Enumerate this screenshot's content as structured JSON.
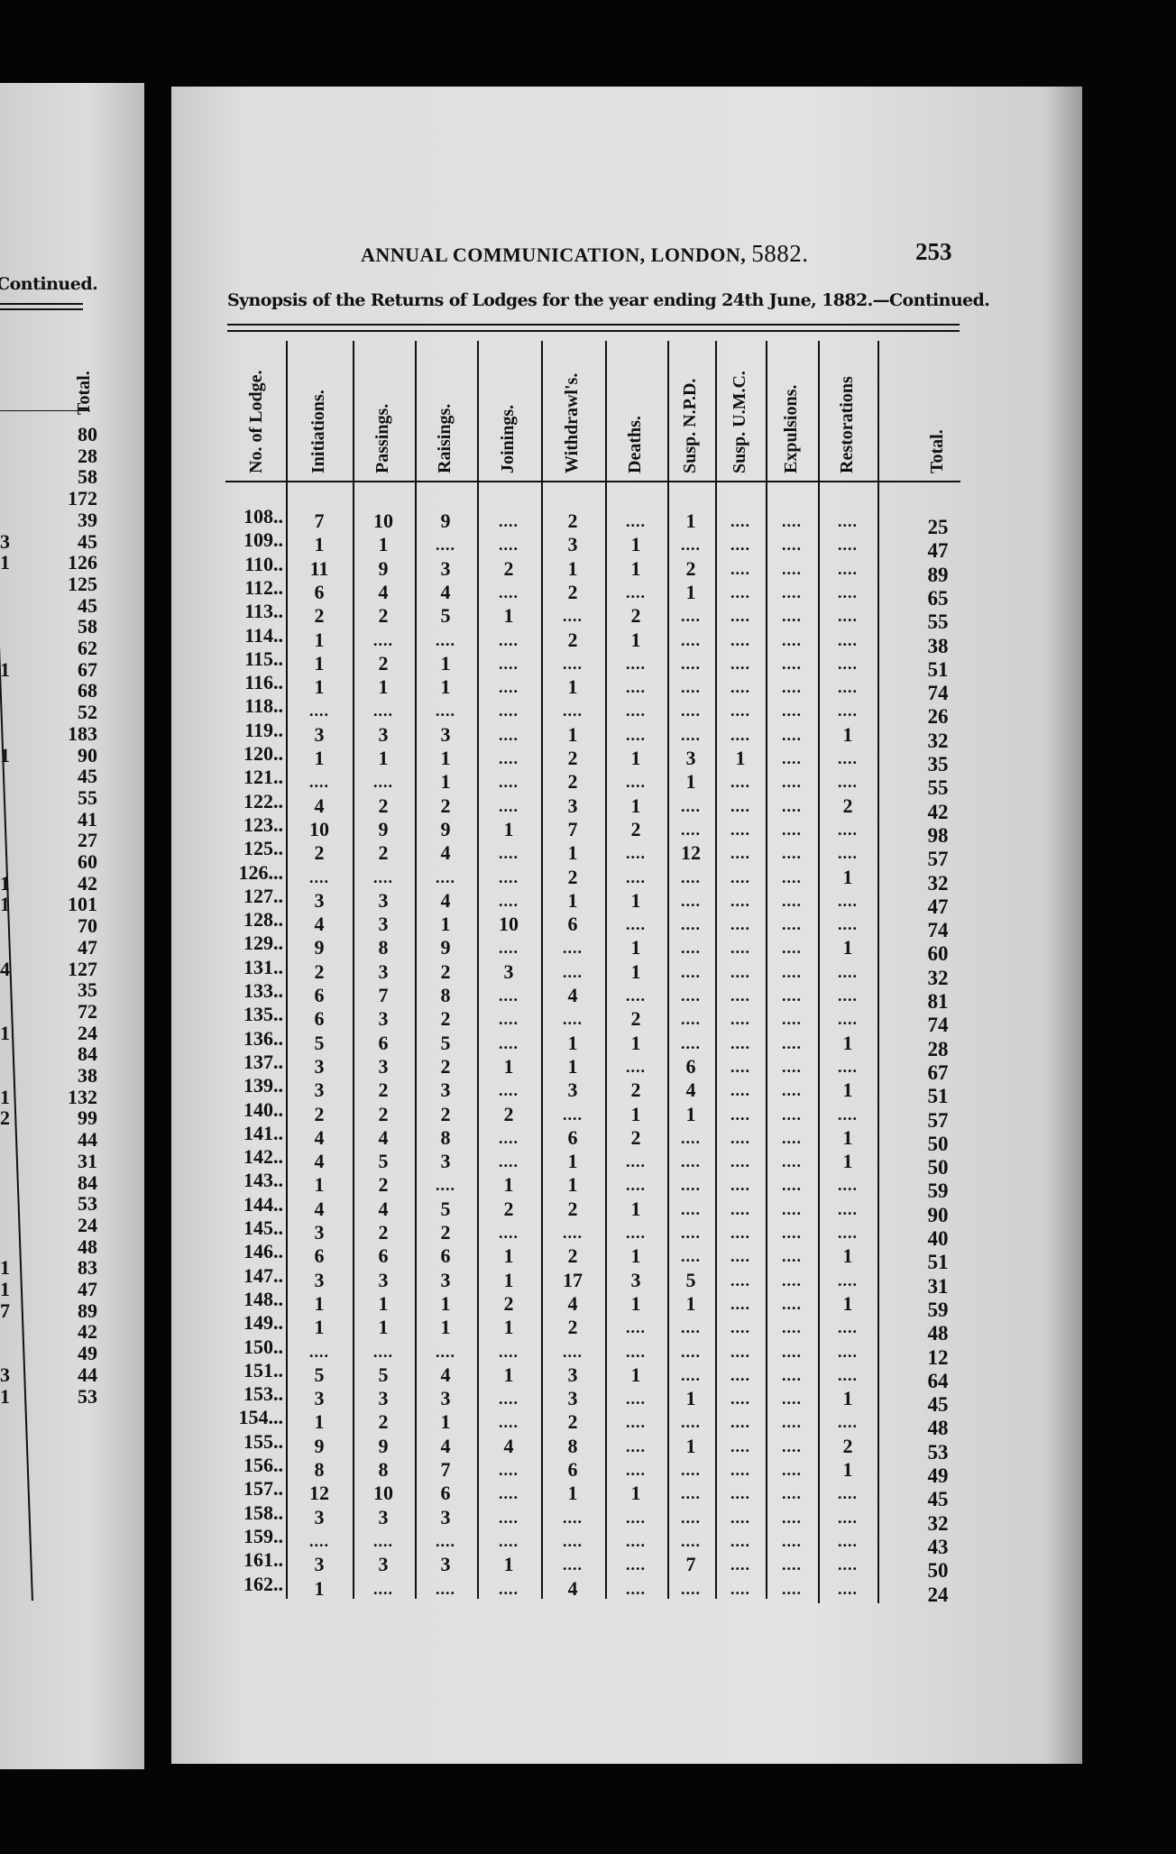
{
  "left_page": {
    "continued": "Continued.",
    "total_header": "Total.",
    "partial_column": [
      "",
      "",
      "",
      "",
      "",
      "3",
      "1",
      "",
      "",
      "",
      "",
      "1",
      "",
      "",
      "",
      "1",
      "",
      "",
      "",
      "",
      "",
      "1",
      "1",
      "",
      "",
      "4",
      "",
      "",
      "1",
      "",
      "",
      "1",
      "2",
      "",
      "",
      "",
      "",
      "",
      "",
      "1",
      "1",
      "7",
      "",
      "",
      "3",
      "1"
    ],
    "totals": [
      "80",
      "28",
      "58",
      "172",
      "39",
      "45",
      "126",
      "125",
      "45",
      "58",
      "62",
      "67",
      "68",
      "52",
      "183",
      "90",
      "45",
      "55",
      "41",
      "27",
      "60",
      "42",
      "101",
      "70",
      "47",
      "127",
      "35",
      "72",
      "24",
      "84",
      "38",
      "132",
      "99",
      "44",
      "31",
      "84",
      "53",
      "24",
      "48",
      "83",
      "47",
      "89",
      "42",
      "49",
      "44",
      "53"
    ]
  },
  "header": {
    "running_title": "ANNUAL COMMUNICATION, LONDON,",
    "year": "5882.",
    "page_number": "253",
    "subtitle": "Synopsis of the Returns of Lodges for the year ending 24th June, 1882.—Continued."
  },
  "table": {
    "columns": [
      "No. of Lodge.",
      "Initiations.",
      "Passings.",
      "Raisings.",
      "Joinings.",
      "Withdrawl's.",
      "Deaths.",
      "Susp. N.P.D.",
      "Susp. U.M.C.",
      "Expulsions.",
      "Restorations",
      "Total."
    ],
    "empty_mark": "....",
    "rows": [
      [
        "108..",
        "7",
        "10",
        "9",
        "",
        "2",
        "",
        "1",
        "",
        "",
        "",
        "25"
      ],
      [
        "109..",
        "1",
        "1",
        "",
        "",
        "3",
        "1",
        "",
        "",
        "",
        "",
        "47"
      ],
      [
        "110..",
        "11",
        "9",
        "3",
        "2",
        "1",
        "1",
        "2",
        "",
        "",
        "",
        "89"
      ],
      [
        "112..",
        "6",
        "4",
        "4",
        "",
        "2",
        "",
        "1",
        "",
        "",
        "",
        "65"
      ],
      [
        "113..",
        "2",
        "2",
        "5",
        "1",
        "",
        "2",
        "",
        "",
        "",
        "",
        "55"
      ],
      [
        "114..",
        "1",
        "",
        "",
        "",
        "2",
        "1",
        "",
        "",
        "",
        "",
        "38"
      ],
      [
        "115..",
        "1",
        "2",
        "1",
        "",
        "",
        "",
        "",
        "",
        "",
        "",
        "51"
      ],
      [
        "116..",
        "1",
        "1",
        "1",
        "",
        "1",
        "",
        "",
        "",
        "",
        "",
        "74"
      ],
      [
        "118..",
        "",
        "",
        "",
        "",
        "",
        "",
        "",
        "",
        "",
        "",
        "26"
      ],
      [
        "119..",
        "3",
        "3",
        "3",
        "",
        "1",
        "",
        "",
        "",
        "",
        "1",
        "32"
      ],
      [
        "120..",
        "1",
        "1",
        "1",
        "",
        "2",
        "1",
        "3",
        "1",
        "",
        "",
        "35"
      ],
      [
        "121..",
        "",
        "",
        "1",
        "",
        "2",
        "",
        "1",
        "",
        "",
        "",
        "55"
      ],
      [
        "122..",
        "4",
        "2",
        "2",
        "",
        "3",
        "1",
        "",
        "",
        "",
        "2",
        "42"
      ],
      [
        "123..",
        "10",
        "9",
        "9",
        "1",
        "7",
        "2",
        "",
        "",
        "",
        "",
        "98"
      ],
      [
        "125..",
        "2",
        "2",
        "4",
        "",
        "1",
        "",
        "12",
        "",
        "",
        "",
        "57"
      ],
      [
        "126...",
        "",
        "",
        "",
        "",
        "2",
        "",
        "",
        "",
        "",
        "1",
        "32"
      ],
      [
        "127..",
        "3",
        "3",
        "4",
        "",
        "1",
        "1",
        "",
        "",
        "",
        "",
        "47"
      ],
      [
        "128..",
        "4",
        "3",
        "1",
        "10",
        "6",
        "",
        "",
        "",
        "",
        "",
        "74"
      ],
      [
        "129..",
        "9",
        "8",
        "9",
        "",
        "",
        "1",
        "",
        "",
        "",
        "1",
        "60"
      ],
      [
        "131..",
        "2",
        "3",
        "2",
        "3",
        "",
        "1",
        "",
        "",
        "",
        "",
        "32"
      ],
      [
        "133..",
        "6",
        "7",
        "8",
        "",
        "4",
        "",
        "",
        "",
        "",
        "",
        "81"
      ],
      [
        "135..",
        "6",
        "3",
        "2",
        "",
        "",
        "2",
        "",
        "",
        "",
        "",
        "74"
      ],
      [
        "136..",
        "5",
        "6",
        "5",
        "",
        "1",
        "1",
        "",
        "",
        "",
        "1",
        "28"
      ],
      [
        "137..",
        "3",
        "3",
        "2",
        "1",
        "1",
        "",
        "6",
        "",
        "",
        "",
        "67"
      ],
      [
        "139..",
        "3",
        "2",
        "3",
        "",
        "3",
        "2",
        "4",
        "",
        "",
        "1",
        "51"
      ],
      [
        "140..",
        "2",
        "2",
        "2",
        "2",
        "",
        "1",
        "1",
        "",
        "",
        "",
        "57"
      ],
      [
        "141..",
        "4",
        "4",
        "8",
        "",
        "6",
        "2",
        "",
        "",
        "",
        "1",
        "50"
      ],
      [
        "142..",
        "4",
        "5",
        "3",
        "",
        "1",
        "",
        "",
        "",
        "",
        "1",
        "50"
      ],
      [
        "143..",
        "1",
        "2",
        "",
        "1",
        "1",
        "",
        "",
        "",
        "",
        "",
        "59"
      ],
      [
        "144..",
        "4",
        "4",
        "5",
        "2",
        "2",
        "1",
        "",
        "",
        "",
        "",
        "90"
      ],
      [
        "145..",
        "3",
        "2",
        "2",
        "",
        "",
        "",
        "",
        "",
        "",
        "",
        "40"
      ],
      [
        "146..",
        "6",
        "6",
        "6",
        "1",
        "2",
        "1",
        "",
        "",
        "",
        "1",
        "51"
      ],
      [
        "147..",
        "3",
        "3",
        "3",
        "1",
        "17",
        "3",
        "5",
        "",
        "",
        "",
        "31"
      ],
      [
        "148..",
        "1",
        "1",
        "1",
        "2",
        "4",
        "1",
        "1",
        "",
        "",
        "1",
        "59"
      ],
      [
        "149..",
        "1",
        "1",
        "1",
        "1",
        "2",
        "",
        "",
        "",
        "",
        "",
        "48"
      ],
      [
        "150..",
        "",
        "",
        "",
        "",
        "",
        "",
        "",
        "",
        "",
        "",
        "12"
      ],
      [
        "151..",
        "5",
        "5",
        "4",
        "1",
        "3",
        "1",
        "",
        "",
        "",
        "",
        "64"
      ],
      [
        "153..",
        "3",
        "3",
        "3",
        "",
        "3",
        "",
        "1",
        "",
        "",
        "1",
        "45"
      ],
      [
        "154...",
        "1",
        "2",
        "1",
        "",
        "2",
        "",
        "",
        "",
        "",
        "",
        "48"
      ],
      [
        "155..",
        "9",
        "9",
        "4",
        "4",
        "8",
        "",
        "1",
        "",
        "",
        "2",
        "53"
      ],
      [
        "156..",
        "8",
        "8",
        "7",
        "",
        "6",
        "",
        "",
        "",
        "",
        "1",
        "49"
      ],
      [
        "157..",
        "12",
        "10",
        "6",
        "",
        "1",
        "1",
        "",
        "",
        "",
        "",
        "45"
      ],
      [
        "158..",
        "3",
        "3",
        "3",
        "",
        "",
        "",
        "",
        "",
        "",
        "",
        "32"
      ],
      [
        "159..",
        "",
        "",
        "",
        "",
        "",
        "",
        "",
        "",
        "",
        "",
        "43"
      ],
      [
        "161..",
        "3",
        "3",
        "3",
        "1",
        "",
        "",
        "7",
        "",
        "",
        "",
        "50"
      ],
      [
        "162..",
        "1",
        "",
        "",
        "",
        "4",
        "",
        "",
        "",
        "",
        "",
        "24"
      ]
    ]
  }
}
